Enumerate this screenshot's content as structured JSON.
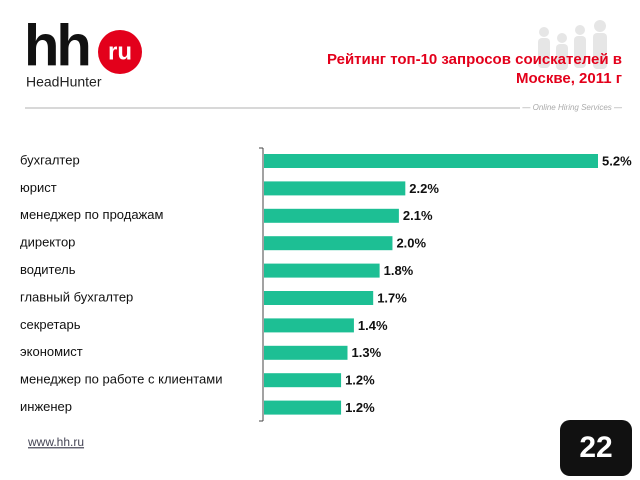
{
  "slide": {
    "logo_mark": "hh",
    "logo_badge": "ru",
    "logo_name": "HeadHunter",
    "tagline": "— Online Hiring Services —",
    "url": "www.hh.ru",
    "page_number": "22"
  },
  "chart_data": {
    "type": "barh",
    "title": "Рейтинг топ-10 запросов соискателей в Москве, 2011 г",
    "categories": [
      "бухгалтер",
      "юрист",
      "менеджер по продажам",
      "директор",
      "водитель",
      "главный бухгалтер",
      "секретарь",
      "экономист",
      "менеджер по работе с клиентами",
      "инженер"
    ],
    "values": [
      5.2,
      2.2,
      2.1,
      2.0,
      1.8,
      1.7,
      1.4,
      1.3,
      1.2,
      1.2
    ],
    "value_labels": [
      "5.2%",
      "2.2%",
      "2.1%",
      "2.0%",
      "1.8%",
      "1.7%",
      "1.4%",
      "1.3%",
      "1.2%",
      "1.2%"
    ],
    "color": "#1dbf94"
  }
}
